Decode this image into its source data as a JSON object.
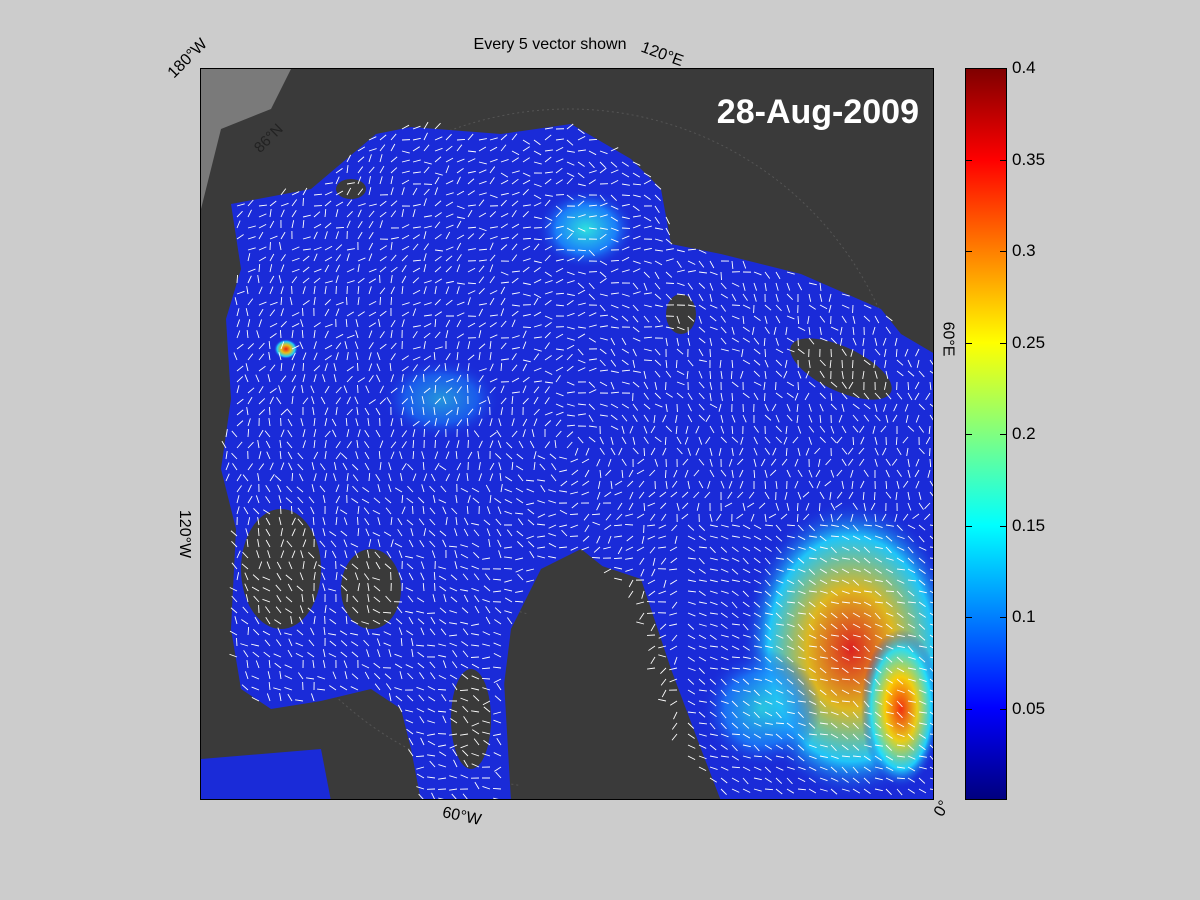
{
  "figure": {
    "title": "Every 5 vector shown",
    "date_label": "28-Aug-2009"
  },
  "map": {
    "longitude_labels": {
      "w180": "180°W",
      "e120": "120°E",
      "e60": "60°E",
      "w120": "120°W",
      "w60": "60°W",
      "zero": "0°"
    },
    "latitude_labels": {
      "n86": "86°N"
    },
    "colors": {
      "land": "#3a3a3a",
      "land_edge": "#8a8a8a",
      "vector": "#ffffff",
      "ocean_base": "#1a2bd8"
    }
  },
  "colorbar": {
    "min": 0,
    "max": 0.4,
    "ticks": [
      "0.05",
      "0.1",
      "0.15",
      "0.2",
      "0.25",
      "0.3",
      "0.35",
      "0.4"
    ],
    "tick_values": [
      0.05,
      0.1,
      0.15,
      0.2,
      0.25,
      0.3,
      0.35,
      0.4
    ],
    "colormap": "jet"
  }
}
